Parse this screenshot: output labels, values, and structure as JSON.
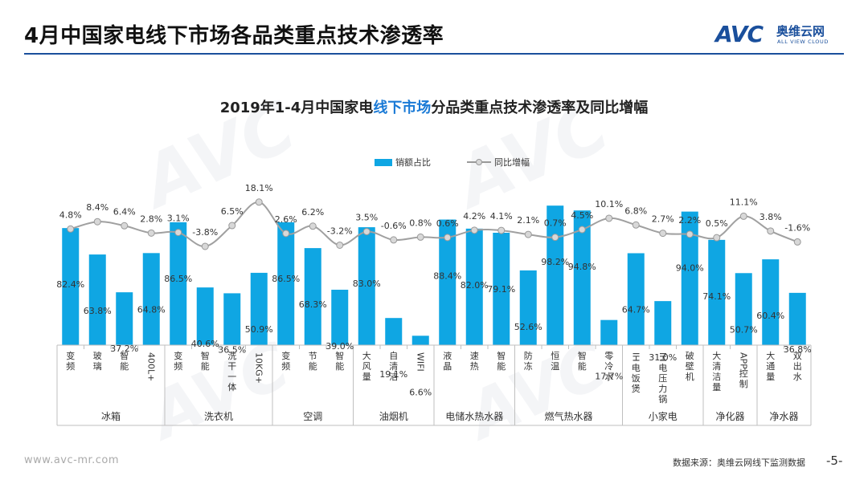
{
  "page": {
    "title": "4月中国家电线下市场各品类重点技术渗透率",
    "logo_mark": "AVC",
    "logo_cn": "奥维云网",
    "logo_en": "ALL VIEW CLOUD",
    "footer_url": "www.avc-mr.com",
    "footer_source": "数据来源：奥维云网线下监测数据",
    "page_number": "-5-"
  },
  "colors": {
    "bar": "#0fa6e3",
    "line": "#a0a0a0",
    "marker": "#d8d8d8",
    "brand": "#1a4f9c",
    "accent": "#1a7ad6"
  },
  "chart_data": {
    "type": "bar+line",
    "title_part1": "2019年1-4月中国家电",
    "title_highlight": "线下市场",
    "title_part2": "分品类重点技术渗透率及同比增幅",
    "legend_bar": "销额占比",
    "legend_line": "同比增幅",
    "bar_ylim": [
      0,
      100
    ],
    "line_ylim": [
      -5,
      20
    ],
    "categories": [
      "变频",
      "玻璃",
      "智能",
      "400L+",
      "变频",
      "智能",
      "洗干一体",
      "10KG+",
      "变频",
      "节能",
      "智能",
      "大风量",
      "自清洁",
      "WIFI",
      "液晶",
      "速热",
      "智能",
      "防冻",
      "恒温",
      "智能",
      "零冷水",
      "IH电饭煲",
      "IH电压力锅",
      "破壁机",
      "大清洁量",
      "APP控制",
      "大通量",
      "双出水"
    ],
    "series": [
      {
        "name": "销额占比",
        "values": [
          82.4,
          63.8,
          37.2,
          64.8,
          86.5,
          40.6,
          36.5,
          50.9,
          86.5,
          68.3,
          39.0,
          83.0,
          19.1,
          6.6,
          88.4,
          82.0,
          79.1,
          52.6,
          98.2,
          94.8,
          17.7,
          64.7,
          31.0,
          94.0,
          74.1,
          50.7,
          60.4,
          36.8
        ],
        "labels": [
          "82.4%",
          "63.8%",
          "37.2%",
          "64.8%",
          "86.5%",
          "40.6%",
          "36.5%",
          "50.9%",
          "86.5%",
          "68.3%",
          "39.0%",
          "83.0%",
          "19.1%",
          "6.6%",
          "88.4%",
          "82.0%",
          "79.1%",
          "52.6%",
          "98.2%",
          "94.8%",
          "17.7%",
          "64.7%",
          "31.0%",
          "94.0%",
          "74.1%",
          "50.7%",
          "60.4%",
          "36.8%"
        ]
      },
      {
        "name": "同比增幅",
        "values": [
          4.8,
          8.4,
          6.4,
          2.8,
          3.1,
          -3.8,
          6.5,
          18.1,
          2.6,
          6.2,
          -3.2,
          3.5,
          -0.6,
          0.8,
          0.6,
          4.2,
          4.1,
          2.1,
          0.7,
          4.5,
          10.1,
          6.8,
          2.7,
          2.2,
          0.5,
          11.1,
          3.8,
          -1.6
        ],
        "labels": [
          "4.8%",
          "8.4%",
          "6.4%",
          "2.8%",
          "3.1%",
          "-3.8%",
          "6.5%",
          "18.1%",
          "2.6%",
          "6.2%",
          "-3.2%",
          "3.5%",
          "-0.6%",
          "0.8%",
          "0.6%",
          "4.2%",
          "4.1%",
          "2.1%",
          "0.7%",
          "4.5%",
          "10.1%",
          "6.8%",
          "2.7%",
          "2.2%",
          "0.5%",
          "11.1%",
          "3.8%",
          "-1.6%"
        ]
      }
    ],
    "groups": [
      {
        "name": "冰箱",
        "count": 4
      },
      {
        "name": "洗衣机",
        "count": 4
      },
      {
        "name": "空调",
        "count": 3
      },
      {
        "name": "油烟机",
        "count": 3
      },
      {
        "name": "电储水热水器",
        "count": 3
      },
      {
        "name": "燃气热水器",
        "count": 4
      },
      {
        "name": "小家电",
        "count": 3
      },
      {
        "name": "净化器",
        "count": 2
      },
      {
        "name": "净水器",
        "count": 2
      }
    ]
  }
}
